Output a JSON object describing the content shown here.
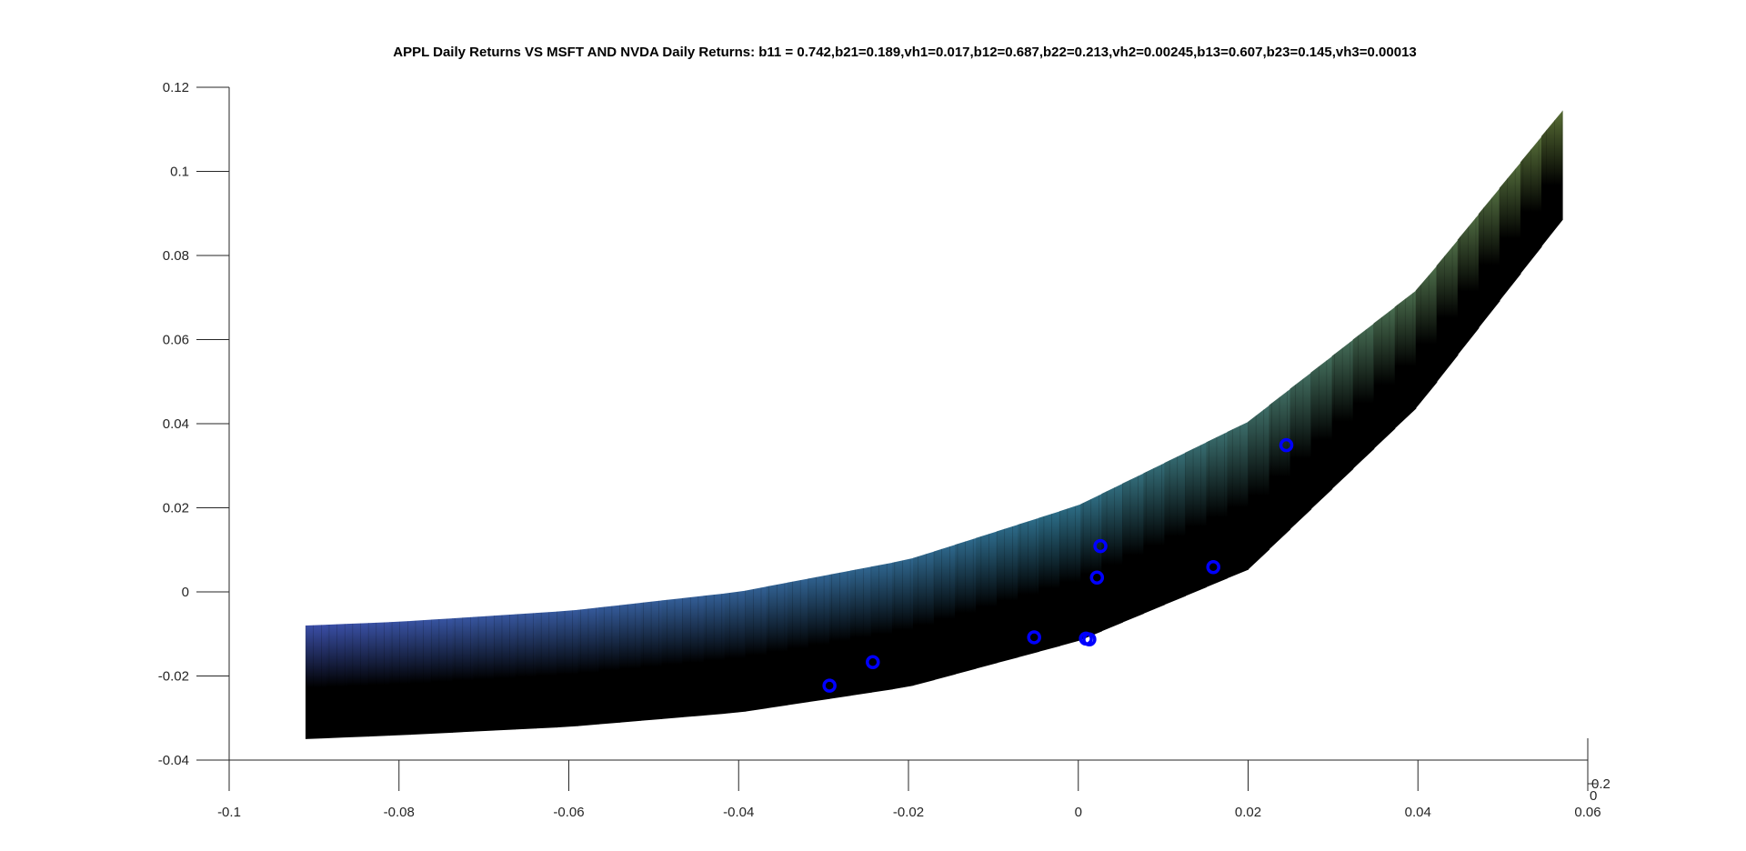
{
  "chart_data": {
    "type": "scatter",
    "title": "APPL Daily Returns VS MSFT AND NVDA Daily Returns: b11 = 0.742,b21=0.189,vh1=0.017,b12=0.687,b22=0.213,vh2=0.00245,b13=0.607,b23=0.145,vh3=0.00013",
    "xlabel": "",
    "ylabel": "",
    "xlim": [
      -0.1,
      0.06
    ],
    "ylim": [
      -0.04,
      0.12
    ],
    "x_ticks": [
      "-0.1",
      "-0.08",
      "-0.06",
      "-0.04",
      "-0.02",
      "0",
      "0.02",
      "0.04",
      "0.06"
    ],
    "y_ticks": [
      "-0.04",
      "-0.02",
      "0",
      "0.02",
      "0.04",
      "0.06",
      "0.08",
      "0.1",
      "0.12"
    ],
    "z_ticks": [
      "0",
      "0.2"
    ],
    "grid": false,
    "surface": {
      "description_colormap": "parula-dark",
      "x_range": [
        -0.091,
        0.057
      ],
      "upper_edge": [
        [
          -0.091,
          -0.008
        ],
        [
          -0.08,
          -0.0071
        ],
        [
          -0.06,
          -0.0045
        ],
        [
          -0.04,
          0.0
        ],
        [
          -0.02,
          0.0077
        ],
        [
          0.0,
          0.0206
        ],
        [
          0.02,
          0.0405
        ],
        [
          0.04,
          0.0721
        ],
        [
          0.057,
          0.1145
        ]
      ],
      "lower_edge": [
        [
          -0.091,
          -0.035
        ],
        [
          -0.08,
          -0.0341
        ],
        [
          -0.06,
          -0.0321
        ],
        [
          -0.04,
          -0.0287
        ],
        [
          -0.02,
          -0.0226
        ],
        [
          0.0,
          -0.0117
        ],
        [
          0.02,
          0.0053
        ],
        [
          0.04,
          0.0441
        ],
        [
          0.057,
          0.0885
        ]
      ],
      "colors": {
        "left_top": "#3b4fa8",
        "mid_top": "#2d6f8a",
        "right_top": "#5a6f34",
        "bottom": "#000000"
      }
    },
    "series": [
      {
        "color": "#0000ff",
        "points": [
          [
            -0.0293,
            -0.0223
          ],
          [
            -0.0242,
            -0.0167
          ],
          [
            -0.0052,
            -0.0108
          ],
          [
            0.0009,
            -0.0111
          ],
          [
            0.0013,
            -0.0113
          ],
          [
            0.0022,
            0.0034
          ],
          [
            0.0026,
            0.0109
          ],
          [
            0.0159,
            0.0059
          ],
          [
            0.0245,
            0.0349
          ]
        ]
      }
    ]
  }
}
